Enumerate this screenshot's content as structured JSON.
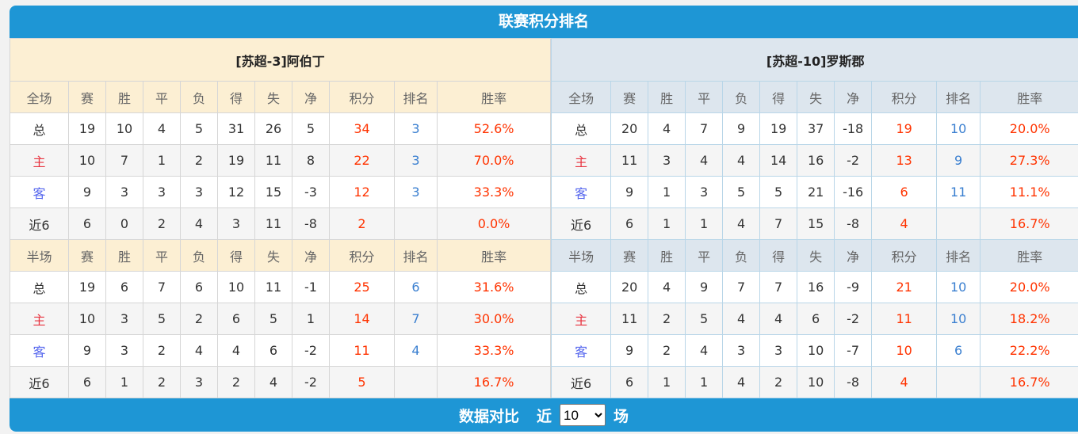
{
  "title": "联赛积分排名",
  "columns_full": [
    "全场",
    "赛",
    "胜",
    "平",
    "负",
    "得",
    "失",
    "净",
    "积分",
    "排名",
    "胜率"
  ],
  "columns_half": [
    "半场",
    "赛",
    "胜",
    "平",
    "负",
    "得",
    "失",
    "净",
    "积分",
    "排名",
    "胜率"
  ],
  "teams": [
    {
      "name": "[苏超-3]阿伯丁",
      "full": [
        [
          "总",
          "19",
          "10",
          "4",
          "5",
          "31",
          "26",
          "5",
          "34",
          "3",
          "52.6%"
        ],
        [
          "主",
          "10",
          "7",
          "1",
          "2",
          "19",
          "11",
          "8",
          "22",
          "3",
          "70.0%"
        ],
        [
          "客",
          "9",
          "3",
          "3",
          "3",
          "12",
          "15",
          "-3",
          "12",
          "3",
          "33.3%"
        ],
        [
          "近6",
          "6",
          "0",
          "2",
          "4",
          "3",
          "11",
          "-8",
          "2",
          "",
          "0.0%"
        ]
      ],
      "half": [
        [
          "总",
          "19",
          "6",
          "7",
          "6",
          "10",
          "11",
          "-1",
          "25",
          "6",
          "31.6%"
        ],
        [
          "主",
          "10",
          "3",
          "5",
          "2",
          "6",
          "5",
          "1",
          "14",
          "7",
          "30.0%"
        ],
        [
          "客",
          "9",
          "3",
          "2",
          "4",
          "4",
          "6",
          "-2",
          "11",
          "4",
          "33.3%"
        ],
        [
          "近6",
          "6",
          "1",
          "2",
          "3",
          "2",
          "4",
          "-2",
          "5",
          "",
          "16.7%"
        ]
      ]
    },
    {
      "name": "[苏超-10]罗斯郡",
      "full": [
        [
          "总",
          "20",
          "4",
          "7",
          "9",
          "19",
          "37",
          "-18",
          "19",
          "10",
          "20.0%"
        ],
        [
          "主",
          "11",
          "3",
          "4",
          "4",
          "14",
          "16",
          "-2",
          "13",
          "9",
          "27.3%"
        ],
        [
          "客",
          "9",
          "1",
          "3",
          "5",
          "5",
          "21",
          "-16",
          "6",
          "11",
          "11.1%"
        ],
        [
          "近6",
          "6",
          "1",
          "1",
          "4",
          "7",
          "15",
          "-8",
          "4",
          "",
          "16.7%"
        ]
      ],
      "half": [
        [
          "总",
          "20",
          "4",
          "9",
          "7",
          "7",
          "16",
          "-9",
          "21",
          "10",
          "20.0%"
        ],
        [
          "主",
          "11",
          "2",
          "5",
          "4",
          "4",
          "6",
          "-2",
          "11",
          "10",
          "18.2%"
        ],
        [
          "客",
          "9",
          "2",
          "4",
          "3",
          "3",
          "10",
          "-7",
          "10",
          "6",
          "22.2%"
        ],
        [
          "近6",
          "6",
          "1",
          "1",
          "4",
          "2",
          "10",
          "-8",
          "4",
          "",
          "16.7%"
        ]
      ]
    }
  ],
  "bottom": {
    "label": "数据对比",
    "prefix": "近",
    "select_value": "10",
    "suffix": "场"
  },
  "colors": {
    "header": "#1e96d5",
    "home_bg": "#fcefd3",
    "away_bg": "#dde6ee",
    "points": "#ff3300",
    "rank": "#3a7fd0"
  }
}
